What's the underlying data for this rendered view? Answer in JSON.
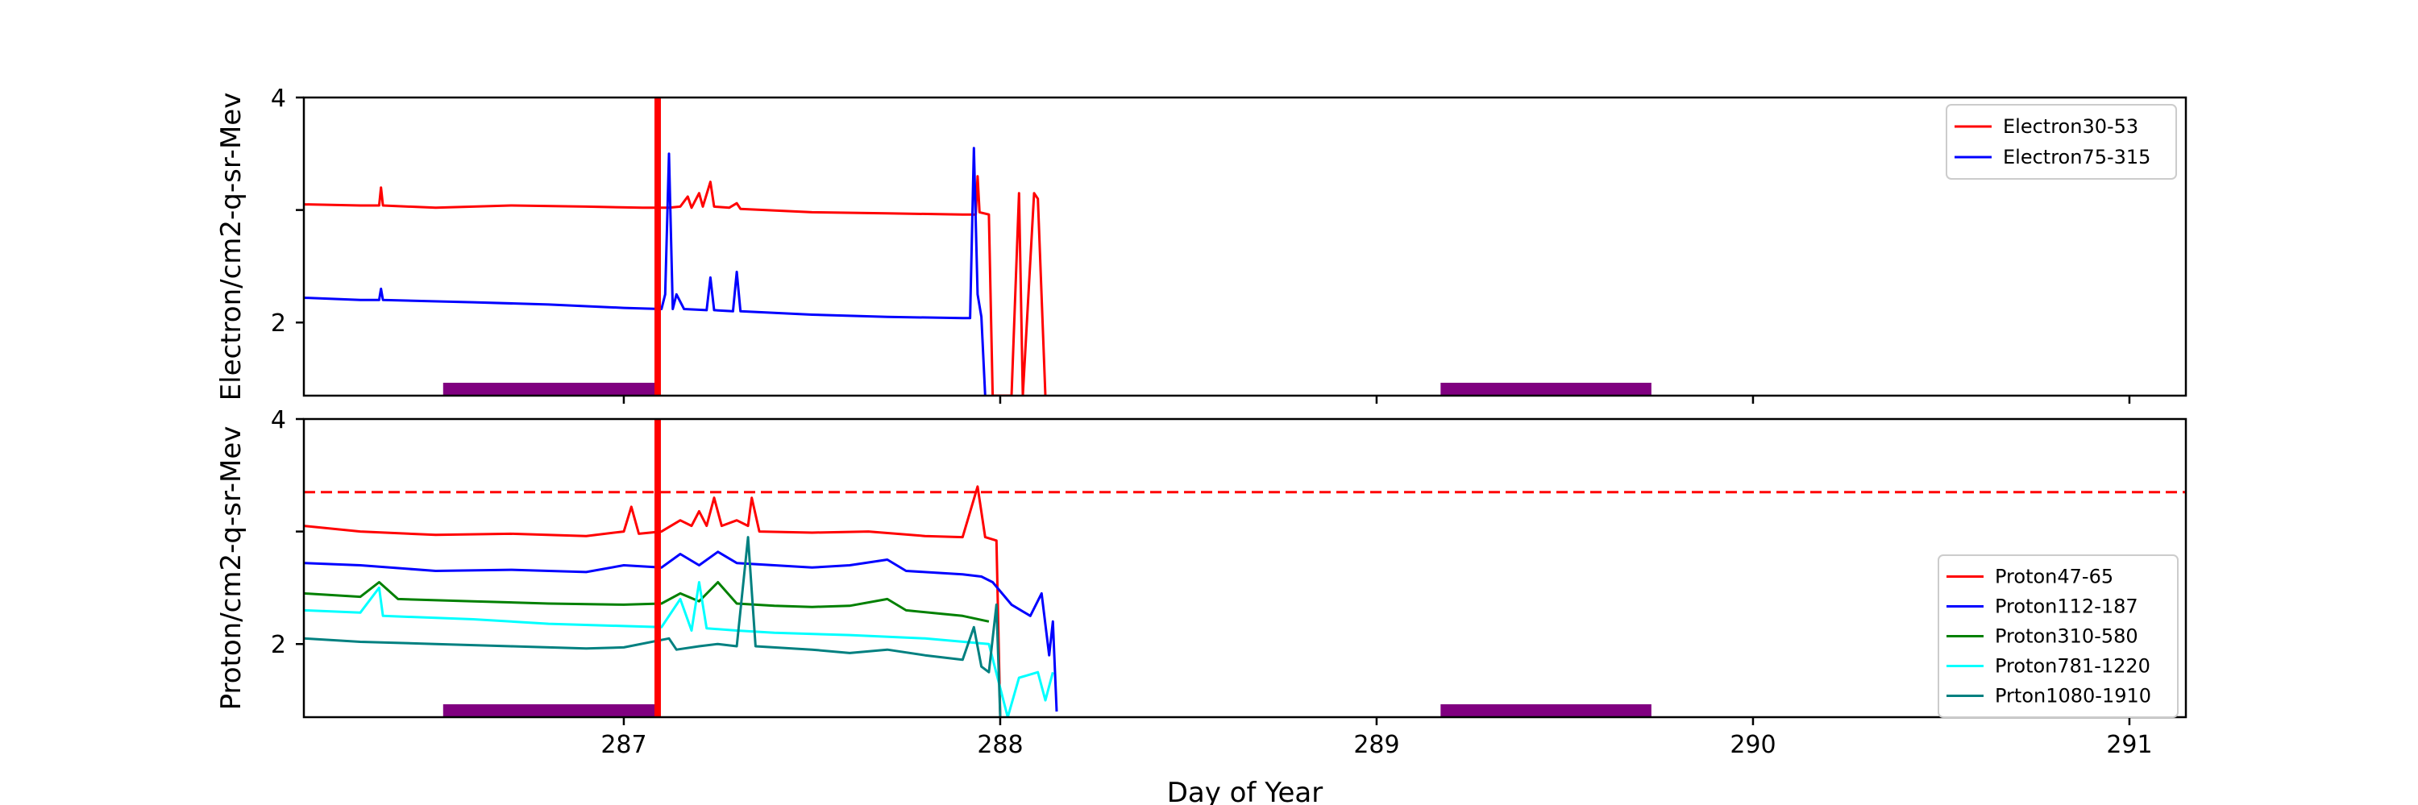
{
  "chart_data": [
    {
      "type": "line",
      "panel": "top",
      "ylabel": "Electron/cm2-q-sr-Mev",
      "xlabel": "",
      "xlim": [
        286.15,
        291.15
      ],
      "ylim": [
        1.35,
        4.0
      ],
      "x_ticks": [
        287,
        288,
        289,
        290,
        291
      ],
      "x_tick_labels": [
        "",
        "",
        "",
        "",
        ""
      ],
      "y_ticks": [
        2,
        3,
        4
      ],
      "y_tick_labels": [
        "2",
        "",
        "4"
      ],
      "legend_position": "upper right",
      "series": [
        {
          "name": "Electron30-53",
          "color": "#ff0000",
          "points": [
            [
              286.15,
              3.05
            ],
            [
              286.3,
              3.04
            ],
            [
              286.35,
              3.04
            ],
            [
              286.355,
              3.2
            ],
            [
              286.36,
              3.04
            ],
            [
              286.5,
              3.02
            ],
            [
              286.7,
              3.04
            ],
            [
              286.9,
              3.03
            ],
            [
              287.05,
              3.02
            ],
            [
              287.12,
              3.02
            ],
            [
              287.15,
              3.03
            ],
            [
              287.17,
              3.12
            ],
            [
              287.18,
              3.02
            ],
            [
              287.2,
              3.15
            ],
            [
              287.21,
              3.03
            ],
            [
              287.23,
              3.25
            ],
            [
              287.24,
              3.03
            ],
            [
              287.28,
              3.02
            ],
            [
              287.3,
              3.06
            ],
            [
              287.31,
              3.01
            ],
            [
              287.5,
              2.98
            ],
            [
              287.7,
              2.97
            ],
            [
              287.9,
              2.96
            ],
            [
              287.935,
              2.96
            ],
            [
              287.94,
              3.3
            ],
            [
              287.945,
              2.98
            ],
            [
              287.97,
              2.96
            ],
            [
              287.98,
              1.35
            ],
            [
              288.03,
              1.35
            ],
            [
              288.05,
              3.15
            ],
            [
              288.06,
              1.35
            ],
            [
              288.09,
              3.15
            ],
            [
              288.1,
              3.1
            ],
            [
              288.12,
              1.35
            ]
          ]
        },
        {
          "name": "Electron75-315",
          "color": "#0000ff",
          "points": [
            [
              286.15,
              2.22
            ],
            [
              286.3,
              2.2
            ],
            [
              286.35,
              2.2
            ],
            [
              286.355,
              2.3
            ],
            [
              286.36,
              2.2
            ],
            [
              286.6,
              2.18
            ],
            [
              286.8,
              2.16
            ],
            [
              287.0,
              2.13
            ],
            [
              287.1,
              2.12
            ],
            [
              287.11,
              2.25
            ],
            [
              287.12,
              3.5
            ],
            [
              287.13,
              2.12
            ],
            [
              287.14,
              2.25
            ],
            [
              287.16,
              2.12
            ],
            [
              287.22,
              2.11
            ],
            [
              287.23,
              2.4
            ],
            [
              287.24,
              2.11
            ],
            [
              287.29,
              2.1
            ],
            [
              287.3,
              2.45
            ],
            [
              287.31,
              2.1
            ],
            [
              287.5,
              2.07
            ],
            [
              287.7,
              2.05
            ],
            [
              287.9,
              2.04
            ],
            [
              287.92,
              2.04
            ],
            [
              287.93,
              3.55
            ],
            [
              287.94,
              2.25
            ],
            [
              287.95,
              2.05
            ],
            [
              287.96,
              1.35
            ]
          ]
        }
      ],
      "bars": [
        {
          "x_start": 286.52,
          "x_end": 287.09,
          "color": "#800080"
        },
        {
          "x_start": 289.17,
          "x_end": 289.73,
          "color": "#800080"
        }
      ],
      "vlines": [
        {
          "x": 287.09,
          "color": "#ff0000"
        }
      ]
    },
    {
      "type": "line",
      "panel": "bottom",
      "ylabel": "Proton/cm2-q-sr-Mev",
      "xlabel": "Day of Year",
      "xlim": [
        286.15,
        291.15
      ],
      "ylim": [
        1.35,
        4.0
      ],
      "x_ticks": [
        287,
        288,
        289,
        290,
        291
      ],
      "x_tick_labels": [
        "287",
        "288",
        "289",
        "290",
        "291"
      ],
      "y_ticks": [
        2,
        3,
        4
      ],
      "y_tick_labels": [
        "2",
        "",
        "4"
      ],
      "legend_position": "center right",
      "series": [
        {
          "name": "Proton47-65",
          "color": "#ff0000",
          "points": [
            [
              286.15,
              3.05
            ],
            [
              286.3,
              3.0
            ],
            [
              286.5,
              2.97
            ],
            [
              286.7,
              2.98
            ],
            [
              286.9,
              2.96
            ],
            [
              287.0,
              3.0
            ],
            [
              287.02,
              3.22
            ],
            [
              287.04,
              2.98
            ],
            [
              287.1,
              3.0
            ],
            [
              287.15,
              3.1
            ],
            [
              287.18,
              3.05
            ],
            [
              287.2,
              3.18
            ],
            [
              287.22,
              3.05
            ],
            [
              287.24,
              3.3
            ],
            [
              287.26,
              3.05
            ],
            [
              287.3,
              3.1
            ],
            [
              287.33,
              3.05
            ],
            [
              287.34,
              3.3
            ],
            [
              287.36,
              3.0
            ],
            [
              287.5,
              2.99
            ],
            [
              287.65,
              3.0
            ],
            [
              287.8,
              2.96
            ],
            [
              287.9,
              2.95
            ],
            [
              287.94,
              3.4
            ],
            [
              287.96,
              2.95
            ],
            [
              287.99,
              2.92
            ],
            [
              288.0,
              1.35
            ]
          ]
        },
        {
          "name": "Proton112-187",
          "color": "#0000ff",
          "points": [
            [
              286.15,
              2.72
            ],
            [
              286.3,
              2.7
            ],
            [
              286.5,
              2.65
            ],
            [
              286.7,
              2.66
            ],
            [
              286.9,
              2.64
            ],
            [
              287.0,
              2.7
            ],
            [
              287.1,
              2.68
            ],
            [
              287.15,
              2.8
            ],
            [
              287.2,
              2.7
            ],
            [
              287.25,
              2.82
            ],
            [
              287.3,
              2.72
            ],
            [
              287.4,
              2.7
            ],
            [
              287.5,
              2.68
            ],
            [
              287.6,
              2.7
            ],
            [
              287.7,
              2.75
            ],
            [
              287.75,
              2.65
            ],
            [
              287.9,
              2.62
            ],
            [
              287.95,
              2.6
            ],
            [
              287.98,
              2.55
            ],
            [
              288.03,
              2.35
            ],
            [
              288.08,
              2.25
            ],
            [
              288.11,
              2.45
            ],
            [
              288.13,
              1.9
            ],
            [
              288.14,
              2.2
            ],
            [
              288.15,
              1.4
            ]
          ]
        },
        {
          "name": "Proton310-580",
          "color": "#008000",
          "points": [
            [
              286.15,
              2.45
            ],
            [
              286.3,
              2.42
            ],
            [
              286.35,
              2.55
            ],
            [
              286.4,
              2.4
            ],
            [
              286.6,
              2.38
            ],
            [
              286.8,
              2.36
            ],
            [
              287.0,
              2.35
            ],
            [
              287.1,
              2.36
            ],
            [
              287.15,
              2.45
            ],
            [
              287.2,
              2.38
            ],
            [
              287.25,
              2.55
            ],
            [
              287.3,
              2.36
            ],
            [
              287.4,
              2.34
            ],
            [
              287.5,
              2.33
            ],
            [
              287.6,
              2.34
            ],
            [
              287.7,
              2.4
            ],
            [
              287.75,
              2.3
            ],
            [
              287.9,
              2.25
            ],
            [
              287.97,
              2.2
            ]
          ]
        },
        {
          "name": "Proton781-1220",
          "color": "#00ffff",
          "points": [
            [
              286.15,
              2.3
            ],
            [
              286.3,
              2.28
            ],
            [
              286.35,
              2.5
            ],
            [
              286.36,
              2.25
            ],
            [
              286.6,
              2.22
            ],
            [
              286.8,
              2.18
            ],
            [
              287.0,
              2.16
            ],
            [
              287.1,
              2.15
            ],
            [
              287.15,
              2.4
            ],
            [
              287.18,
              2.12
            ],
            [
              287.2,
              2.55
            ],
            [
              287.22,
              2.14
            ],
            [
              287.3,
              2.12
            ],
            [
              287.4,
              2.1
            ],
            [
              287.6,
              2.08
            ],
            [
              287.8,
              2.05
            ],
            [
              287.97,
              2.0
            ],
            [
              288.02,
              1.35
            ],
            [
              288.05,
              1.7
            ],
            [
              288.1,
              1.75
            ],
            [
              288.12,
              1.5
            ],
            [
              288.14,
              1.75
            ]
          ]
        },
        {
          "name": "Prton1080-1910",
          "color": "#008080",
          "points": [
            [
              286.15,
              2.05
            ],
            [
              286.3,
              2.02
            ],
            [
              286.5,
              2.0
            ],
            [
              286.7,
              1.98
            ],
            [
              286.9,
              1.96
            ],
            [
              287.0,
              1.97
            ],
            [
              287.12,
              2.05
            ],
            [
              287.14,
              1.95
            ],
            [
              287.2,
              1.98
            ],
            [
              287.25,
              2.0
            ],
            [
              287.3,
              1.98
            ],
            [
              287.33,
              2.95
            ],
            [
              287.35,
              1.98
            ],
            [
              287.5,
              1.95
            ],
            [
              287.6,
              1.92
            ],
            [
              287.7,
              1.95
            ],
            [
              287.8,
              1.9
            ],
            [
              287.9,
              1.86
            ],
            [
              287.93,
              2.15
            ],
            [
              287.95,
              1.8
            ],
            [
              287.97,
              1.75
            ],
            [
              287.99,
              2.35
            ],
            [
              288.0,
              1.35
            ]
          ]
        }
      ],
      "hlines": [
        {
          "y": 3.35,
          "color": "#ff0000",
          "style": "dashed"
        }
      ],
      "bars": [
        {
          "x_start": 286.52,
          "x_end": 287.09,
          "color": "#800080"
        },
        {
          "x_start": 289.17,
          "x_end": 289.73,
          "color": "#800080"
        }
      ],
      "vlines": [
        {
          "x": 287.09,
          "color": "#ff0000"
        }
      ]
    }
  ]
}
